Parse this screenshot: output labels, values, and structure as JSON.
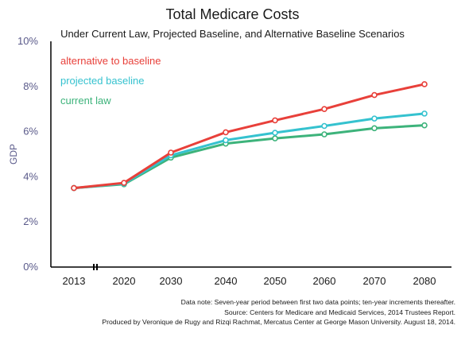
{
  "chart_data": {
    "type": "line",
    "title": "Total Medicare Costs",
    "subtitle": "Under Current Law, Projected Baseline, and Alternative Baseline Scenarios",
    "xlabel": "",
    "ylabel": "GDP",
    "x": [
      "2013",
      "2020",
      "2030",
      "2040",
      "2050",
      "2060",
      "2070",
      "2080"
    ],
    "y_ticks": [
      "0%",
      "2%",
      "4%",
      "6%",
      "8%",
      "10%"
    ],
    "ylim": [
      0,
      10
    ],
    "axis_break": true,
    "grid": false,
    "legend_position": "top-left",
    "series": [
      {
        "name": "alternative to baseline",
        "color": "#e8403a",
        "values": [
          3.5,
          3.73,
          5.07,
          5.97,
          6.5,
          7.0,
          7.62,
          8.1
        ]
      },
      {
        "name": "projected baseline",
        "color": "#35c2cf",
        "values": [
          3.5,
          3.7,
          4.95,
          5.62,
          5.95,
          6.25,
          6.58,
          6.8
        ]
      },
      {
        "name": "current law",
        "color": "#3db37b",
        "values": [
          3.5,
          3.67,
          4.85,
          5.47,
          5.7,
          5.88,
          6.15,
          6.28
        ]
      }
    ]
  },
  "notes": [
    "Data note: Seven-year period between first two data points; ten-year increments thereafter.",
    "Source: Centers for Medicare and Medicaid Services, 2014 Trustees Report.",
    "Produced by Veronique de Rugy and Rizqi Rachmat, Mercatus Center at George Mason University. August 18, 2014."
  ]
}
